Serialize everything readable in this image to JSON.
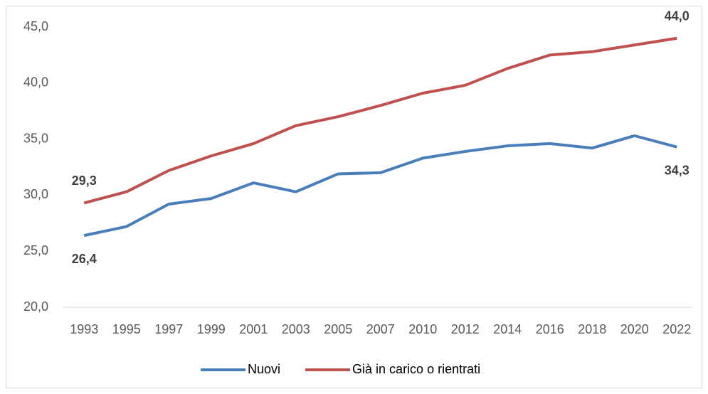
{
  "chart_data": {
    "type": "line",
    "categories": [
      "1993",
      "1995",
      "1997",
      "1999",
      "2001",
      "2003",
      "2005",
      "2007",
      "2010",
      "2012",
      "2014",
      "2016",
      "2018",
      "2020",
      "2022"
    ],
    "series": [
      {
        "name": "Nuovi",
        "color": "#4a7ebb",
        "values": [
          26.4,
          27.2,
          29.2,
          29.7,
          31.1,
          30.3,
          31.9,
          32.0,
          33.3,
          33.9,
          34.4,
          34.6,
          34.2,
          35.3,
          34.3
        ],
        "value_labels": [
          "26,4",
          null,
          null,
          null,
          null,
          null,
          null,
          null,
          null,
          null,
          null,
          null,
          null,
          null,
          "34,3"
        ]
      },
      {
        "name": "Già in carico o rientrati",
        "color": "#c0504d",
        "values": [
          29.3,
          30.3,
          32.2,
          33.5,
          34.6,
          36.2,
          37.0,
          38.0,
          39.1,
          39.8,
          41.3,
          42.5,
          42.8,
          43.4,
          44.0
        ],
        "value_labels": [
          "29,3",
          null,
          null,
          null,
          null,
          null,
          null,
          null,
          null,
          null,
          null,
          null,
          null,
          null,
          "44,0"
        ]
      }
    ],
    "ylim": [
      20,
      45
    ],
    "yticks": [
      {
        "value": 20,
        "label": "20,0"
      },
      {
        "value": 25,
        "label": "25,0"
      },
      {
        "value": 30,
        "label": "30,0"
      },
      {
        "value": 35,
        "label": "35,0"
      },
      {
        "value": 40,
        "label": "40,0"
      },
      {
        "value": 45,
        "label": "45,0"
      }
    ],
    "grid": false,
    "legend": "bottom"
  }
}
